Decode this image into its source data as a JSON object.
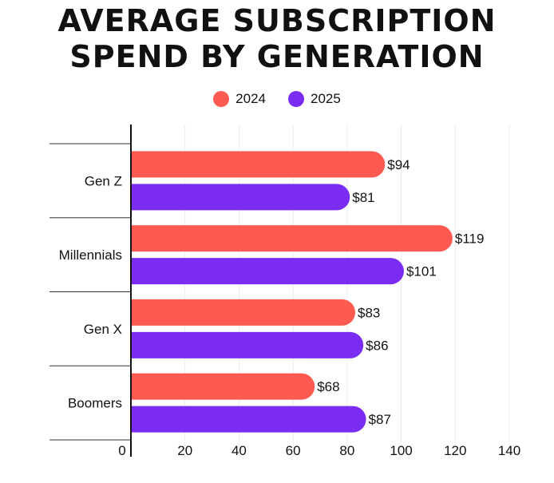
{
  "chart_data": {
    "type": "bar",
    "orientation": "horizontal",
    "title": [
      "AVERAGE SUBSCRIPTION",
      "SPEND BY GENERATION"
    ],
    "categories": [
      "Gen Z",
      "Millennials",
      "Gen X",
      "Boomers"
    ],
    "series": [
      {
        "name": "2024",
        "color": "#FF5A52",
        "values": [
          94,
          119,
          83,
          68
        ],
        "labels": [
          "$94",
          "$119",
          "$83",
          "$68"
        ]
      },
      {
        "name": "2025",
        "color": "#7B2CF2",
        "values": [
          81,
          101,
          86,
          87
        ],
        "labels": [
          "$81",
          "$101",
          "$86",
          "$87"
        ]
      }
    ],
    "xlim": [
      0,
      140
    ],
    "xticks": [
      0,
      20,
      40,
      60,
      80,
      100,
      120,
      140
    ],
    "xtick_labels": [
      "0",
      "20",
      "40",
      "60",
      "80",
      "100",
      "120",
      "140"
    ],
    "grid": true,
    "legend_position": "top-center",
    "xlabel": "",
    "ylabel": ""
  }
}
